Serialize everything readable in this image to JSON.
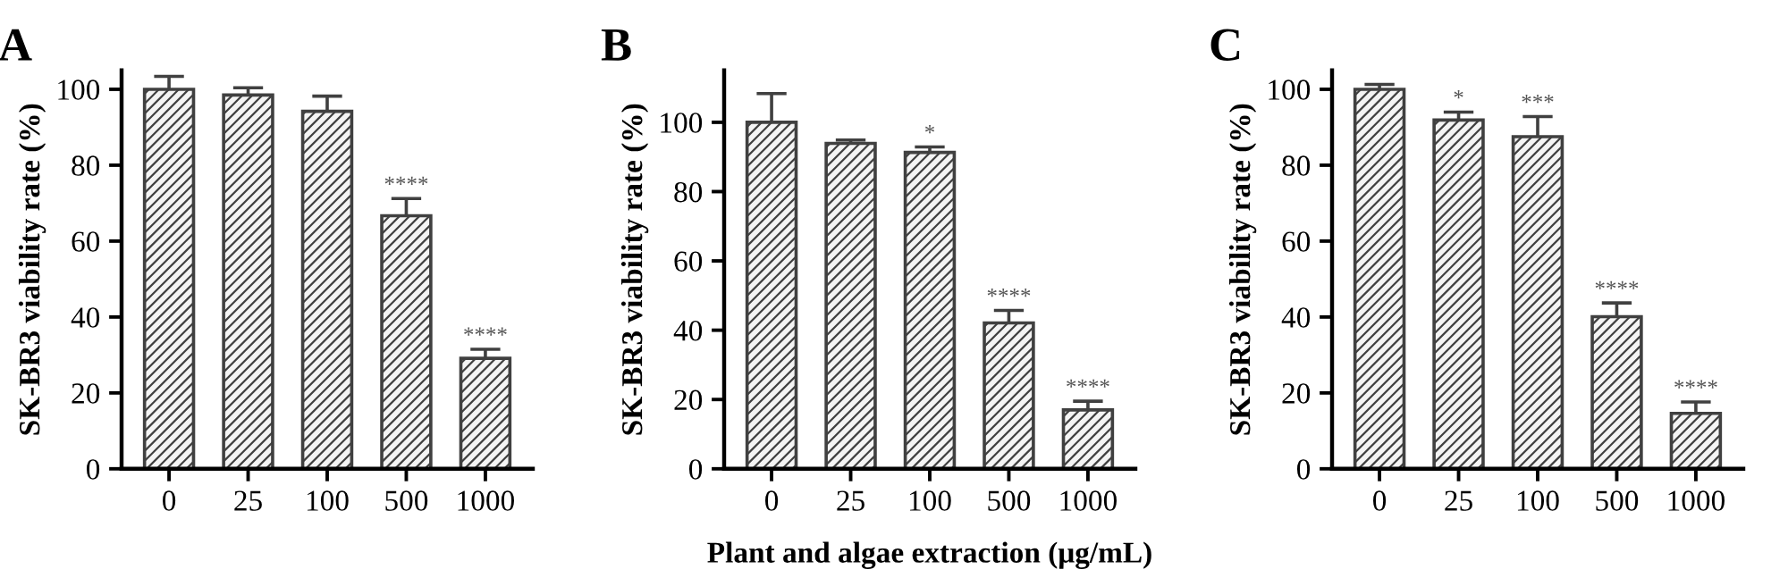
{
  "chart_data": [
    {
      "type": "bar",
      "title": "A",
      "ylabel": "SK-BR3 viability rate (%)",
      "categories": [
        "0",
        "25",
        "100",
        "500",
        "1000"
      ],
      "values": [
        100,
        98.5,
        94.2,
        66.7,
        29.1
      ],
      "errors": [
        3.4,
        1.9,
        4.0,
        4.5,
        2.4
      ],
      "color": "#404040",
      "ylim": [
        0,
        105
      ],
      "yticks": [
        0,
        20,
        40,
        60,
        80,
        100
      ],
      "grid": false,
      "annotations": [
        {
          "text": "****",
          "x": "500",
          "y": 71.2
        },
        {
          "text": "****",
          "x": "1000",
          "y": 31.5
        }
      ]
    },
    {
      "type": "bar",
      "title": "B",
      "ylabel": "SK-BR3 viability rate (%)",
      "xlabel": "Plant and algae extraction (μg/mL)",
      "categories": [
        "0",
        "25",
        "100",
        "500",
        "1000"
      ],
      "values": [
        100,
        93.9,
        91.3,
        42.1,
        17.0
      ],
      "errors": [
        8.3,
        1.0,
        1.6,
        3.6,
        2.5
      ],
      "color": "#404040",
      "ylim": [
        0,
        115
      ],
      "yticks": [
        0,
        20,
        40,
        60,
        80,
        100
      ],
      "grid": false,
      "annotations": [
        {
          "text": "*",
          "x": "100",
          "y": 92.9
        },
        {
          "text": "****",
          "x": "500",
          "y": 45.7
        },
        {
          "text": "****",
          "x": "1000",
          "y": 19.5
        }
      ]
    },
    {
      "type": "bar",
      "title": "C",
      "ylabel": "SK-BR3 viability rate (%)",
      "categories": [
        "0",
        "25",
        "100",
        "500",
        "1000"
      ],
      "values": [
        100,
        91.9,
        87.5,
        40.1,
        14.6
      ],
      "errors": [
        1.3,
        2.1,
        5.3,
        3.6,
        3.0
      ],
      "color": "#404040",
      "ylim": [
        0,
        105
      ],
      "yticks": [
        0,
        20,
        40,
        60,
        80,
        100
      ],
      "grid": false,
      "annotations": [
        {
          "text": "*",
          "x": "25",
          "y": 94.0
        },
        {
          "text": "***",
          "x": "100",
          "y": 92.8
        },
        {
          "text": "****",
          "x": "500",
          "y": 43.7
        },
        {
          "text": "****",
          "x": "1000",
          "y": 17.6
        }
      ]
    }
  ]
}
